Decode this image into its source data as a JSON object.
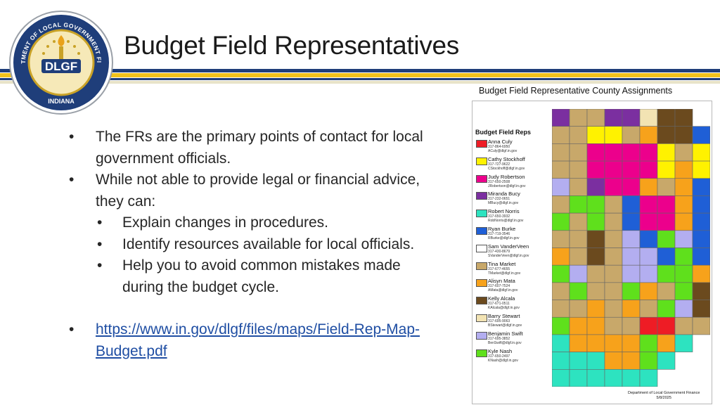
{
  "slide": {
    "title": "Budget Field Representatives",
    "logo": {
      "text": "DLGF",
      "ring_top": "DEPARTMENT OF LOCAL GOVERNMENT FINANCE",
      "ring_bottom": "INDIANA"
    },
    "bullets": [
      {
        "level": 1,
        "text": "The FRs are the primary points of contact for local government officials."
      },
      {
        "level": 1,
        "text": "While not able to provide legal or financial advice, they can:"
      },
      {
        "level": 2,
        "text": "Explain changes in procedures."
      },
      {
        "level": 2,
        "text": "Identify resources available for local officials."
      },
      {
        "level": 2,
        "text": "Help you to avoid common mistakes made during the budget cycle."
      }
    ],
    "link": "https://www.in.gov/dlgf/files/maps/Field-Rep-Map-Budget.pdf",
    "bullet_char": "•"
  },
  "map": {
    "caption": "Budget Field Representative County Assignments",
    "legend_title": "Budget Field Reps",
    "reps": [
      {
        "name": "Anna Culy",
        "phone": "317-864-6950",
        "email": "ACuly@dlgf.in.gov",
        "color": "#ee1c25"
      },
      {
        "name": "Cathy Stockhoff",
        "phone": "317-727-9622",
        "email": "CStockhoff@dlgf.in.gov",
        "color": "#fff200"
      },
      {
        "name": "Judy Robertson",
        "phone": "317-650-2508",
        "email": "JRobertson@dlgf.in.gov",
        "color": "#ec008c"
      },
      {
        "name": "Miranda Bucy",
        "phone": "317-232-0651",
        "email": "MBucy@dlgf.in.gov",
        "color": "#7b2fa0"
      },
      {
        "name": "Robert Norris",
        "phone": "317-650-3932",
        "email": "RobNorris@dlgf.in.gov",
        "color": "#2de3c0"
      },
      {
        "name": "Ryan Burke",
        "phone": "317-719-3546",
        "email": "RBurke@dlgf.in.gov",
        "color": "#1f5fd6"
      },
      {
        "name": "Sam VanderVeen",
        "phone": "317-430-8679",
        "email": "SVanderVeen@dlgf.in.gov",
        "color": "#ffffff"
      },
      {
        "name": "Tina Market",
        "phone": "317-677-4655",
        "email": "TMarket@dlgf.in.gov",
        "color": "#c8a86a"
      },
      {
        "name": "Alisyn Mata",
        "phone": "317-607-7524",
        "email": "AMata@dlgf.in.gov",
        "color": "#f7a21b"
      },
      {
        "name": "Kelly Alcala",
        "phone": "317-671-0511",
        "email": "KAlcala@dlgf.in.gov",
        "color": "#6b4a1e"
      },
      {
        "name": "Barry Stewart",
        "phone": "317-695-9063",
        "email": "BStewart@dlgf.in.gov",
        "color": "#f2e3b3"
      },
      {
        "name": "Benjamin Swift",
        "phone": "317-695-3852",
        "email": "BenSwift@dlgf.in.gov",
        "color": "#b3aef0"
      },
      {
        "name": "Kyle Nash",
        "phone": "317-650-2497",
        "email": "KNash@dlgf.in.gov",
        "color": "#5fe01c"
      }
    ],
    "footer_line1": "Department of Local Government Finance",
    "footer_line2": "5/8/2025"
  },
  "colors": {
    "navy": "#1f3e7a",
    "gold": "#f2c21b",
    "link": "#1f4ea3"
  }
}
